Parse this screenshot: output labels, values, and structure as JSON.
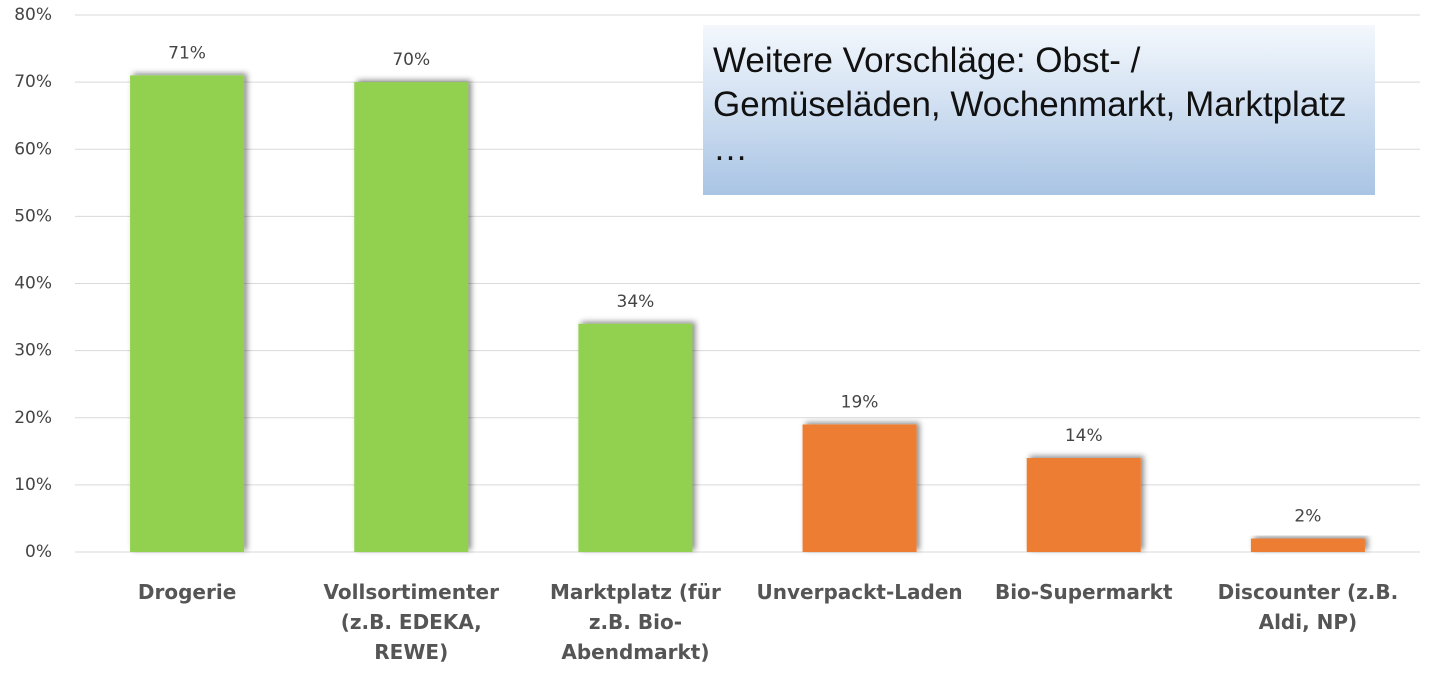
{
  "chart_data": {
    "type": "bar",
    "categories": [
      "Drogerie",
      "Vollsortimenter (z.B. EDEKA, REWE)",
      "Marktplatz (für z.B. Bio-Abendmarkt)",
      "Unverpackt-Laden",
      "Bio-Supermarkt",
      "Discounter (z.B. Aldi, NP)"
    ],
    "values": [
      71,
      70,
      34,
      19,
      14,
      2
    ],
    "value_labels": [
      "71%",
      "70%",
      "34%",
      "19%",
      "14%",
      "2%"
    ],
    "colors": [
      "#92d050",
      "#92d050",
      "#92d050",
      "#ed7d31",
      "#ed7d31",
      "#ed7d31"
    ],
    "ylim": [
      0,
      80
    ],
    "yticks": [
      {
        "value": 0,
        "label": "0%"
      },
      {
        "value": 10,
        "label": "10%"
      },
      {
        "value": 20,
        "label": "20%"
      },
      {
        "value": 30,
        "label": "30%"
      },
      {
        "value": 40,
        "label": "40%"
      },
      {
        "value": 50,
        "label": "50%"
      },
      {
        "value": 60,
        "label": "60%"
      },
      {
        "value": 70,
        "label": "70%"
      },
      {
        "value": 80,
        "label": "80%"
      }
    ],
    "grid": true,
    "annotation": "Weitere Vorschläge: Obst- / Gemüseläden, Wochenmarkt, Marktplatz …"
  }
}
